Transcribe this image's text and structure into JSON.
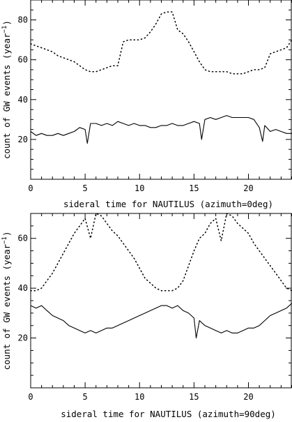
{
  "chart_data": [
    {
      "type": "line",
      "xlabel": "sideral time for NAUTILUS (azimuth=0deg)",
      "ylabel_main": "count of GW events (year",
      "ylabel_sup": "−1",
      "ylabel_close": ")",
      "xlim": [
        0,
        24
      ],
      "ylim": [
        0,
        90
      ],
      "xticks": [
        0,
        5,
        10,
        15,
        20
      ],
      "yticks": [
        20,
        40,
        60,
        80
      ],
      "series": [
        {
          "style": "dotted",
          "x": [
            0,
            0.5,
            1,
            1.5,
            2,
            2.5,
            3,
            3.5,
            4,
            4.5,
            5,
            5.5,
            6,
            6.5,
            7,
            7.5,
            8,
            8.5,
            9,
            9.5,
            10,
            10.5,
            11,
            11.5,
            12,
            12.5,
            13,
            13.5,
            14,
            14.5,
            15,
            15.5,
            16,
            16.5,
            17,
            17.5,
            18,
            18.5,
            19,
            19.5,
            20,
            20.5,
            21,
            21.5,
            22,
            22.5,
            23,
            23.5,
            24
          ],
          "y": [
            68,
            67,
            66,
            65,
            64,
            62,
            61,
            60,
            59,
            57,
            55,
            54,
            54,
            55,
            56,
            57,
            57,
            69,
            70,
            70,
            70,
            71,
            74,
            78,
            83,
            84,
            84,
            75,
            73,
            69,
            64,
            59,
            55,
            54,
            54,
            54,
            54,
            53,
            53,
            53,
            54,
            55,
            55,
            56,
            63,
            64,
            65,
            66,
            70
          ]
        },
        {
          "style": "solid",
          "x": [
            0,
            0.5,
            1,
            1.5,
            2,
            2.5,
            3,
            3.5,
            4,
            4.5,
            5,
            5.2,
            5.5,
            6,
            6.5,
            7,
            7.5,
            8,
            8.5,
            9,
            9.5,
            10,
            10.5,
            11,
            11.5,
            12,
            12.5,
            13,
            13.5,
            14,
            14.5,
            15,
            15.5,
            15.7,
            16,
            16.5,
            17,
            17.5,
            18,
            18.5,
            19,
            19.5,
            20,
            20.5,
            21,
            21.3,
            21.5,
            22,
            22.5,
            23,
            23.5,
            24
          ],
          "y": [
            24,
            22,
            23,
            22,
            22,
            23,
            22,
            23,
            24,
            26,
            25,
            18,
            28,
            28,
            27,
            28,
            27,
            29,
            28,
            27,
            28,
            27,
            27,
            26,
            26,
            27,
            27,
            28,
            27,
            27,
            28,
            29,
            28,
            20,
            30,
            31,
            30,
            31,
            32,
            31,
            31,
            31,
            31,
            30,
            26,
            19,
            27,
            24,
            25,
            24,
            23,
            23
          ]
        }
      ]
    },
    {
      "type": "line",
      "xlabel": "sideral time for NAUTILUS (azimuth=90deg)",
      "ylabel_main": "count of GW events (year",
      "ylabel_sup": "−1",
      "ylabel_close": ")",
      "xlim": [
        0,
        24
      ],
      "ylim": [
        0,
        70
      ],
      "xticks": [
        0,
        5,
        10,
        15,
        20
      ],
      "yticks": [
        20,
        40,
        60
      ],
      "series": [
        {
          "style": "dotted",
          "x": [
            0,
            0.5,
            1,
            1.5,
            2,
            2.5,
            3,
            3.5,
            4,
            4.5,
            5,
            5.5,
            6,
            6.5,
            7,
            7.5,
            8,
            8.5,
            9,
            9.5,
            10,
            10.5,
            11,
            11.5,
            12,
            12.5,
            13,
            13.5,
            14,
            14.5,
            15,
            15.5,
            16,
            16.5,
            17,
            17.5,
            18,
            18.5,
            19,
            19.5,
            20,
            20.5,
            21,
            21.5,
            22,
            22.5,
            23,
            23.5,
            24
          ],
          "y": [
            39,
            39,
            40,
            43,
            46,
            50,
            54,
            58,
            62,
            65,
            68,
            60,
            70,
            69,
            66,
            63,
            61,
            58,
            55,
            52,
            48,
            44,
            42,
            40,
            39,
            39,
            39,
            40,
            43,
            49,
            55,
            60,
            62,
            66,
            68,
            59,
            70,
            69,
            66,
            64,
            62,
            58,
            55,
            52,
            49,
            46,
            43,
            40,
            39
          ]
        },
        {
          "style": "solid",
          "x": [
            0,
            0.5,
            1,
            1.5,
            2,
            2.5,
            3,
            3.5,
            4,
            4.5,
            5,
            5.5,
            6,
            6.5,
            7,
            7.5,
            8,
            8.5,
            9,
            9.5,
            10,
            10.5,
            11,
            11.5,
            12,
            12.5,
            13,
            13.5,
            14,
            14.5,
            15,
            15.2,
            15.5,
            16,
            16.5,
            17,
            17.5,
            18,
            18.5,
            19,
            19.5,
            20,
            20.5,
            21,
            21.5,
            22,
            22.5,
            23,
            23.5,
            24
          ],
          "y": [
            33,
            32,
            33,
            31,
            29,
            28,
            27,
            25,
            24,
            23,
            22,
            23,
            22,
            23,
            24,
            24,
            25,
            26,
            27,
            28,
            29,
            30,
            31,
            32,
            33,
            33,
            32,
            33,
            31,
            30,
            28,
            20,
            27,
            25,
            24,
            23,
            22,
            23,
            22,
            22,
            23,
            24,
            24,
            25,
            27,
            29,
            30,
            31,
            32,
            34
          ]
        }
      ]
    }
  ]
}
